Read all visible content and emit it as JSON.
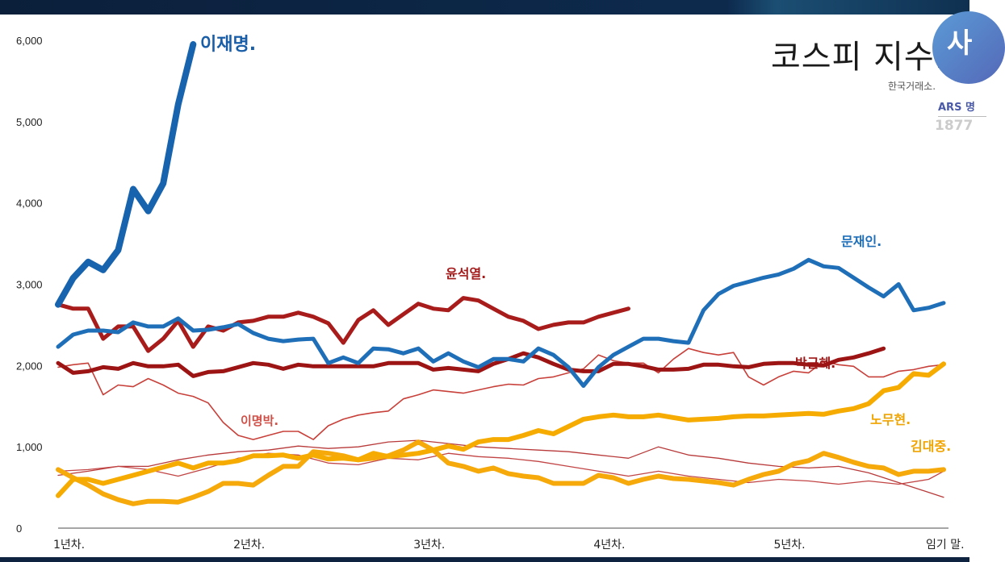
{
  "header": {
    "title": "코스피 지수.",
    "source": "한국거래소."
  },
  "overlay": {
    "logo_text": "사",
    "ars_label": "ARS 명",
    "phone": "1877"
  },
  "chart_data": {
    "type": "line",
    "title": "코스피 지수.",
    "xlabel": "",
    "ylabel": "",
    "ylim": [
      0,
      6000
    ],
    "yticks": [
      0,
      1000,
      2000,
      3000,
      4000,
      5000,
      6000
    ],
    "ytick_labels": [
      "0",
      "1,000",
      "2,000",
      "3,000",
      "4,000",
      "5,000",
      "6,000"
    ],
    "x_unit": "months into term",
    "xlim": [
      0,
      59
    ],
    "xticks": [
      0,
      12,
      24,
      36,
      48,
      59
    ],
    "xtick_labels": [
      "1년차.",
      "2년차.",
      "3년차.",
      "4년차.",
      "5년차.",
      "임기 말."
    ],
    "grid": false,
    "legend": "inline labels",
    "series": [
      {
        "name": "",
        "color": "#b83a3a",
        "width": 1.3,
        "x": [
          0,
          2,
          4,
          6,
          8,
          10,
          12,
          14,
          16,
          18,
          20,
          22,
          24,
          26,
          28,
          30,
          32,
          34,
          36,
          38,
          40,
          42,
          44,
          46,
          48,
          50,
          52,
          54,
          56,
          58,
          59
        ],
        "values": [
          650,
          700,
          760,
          760,
          840,
          900,
          940,
          960,
          1010,
          980,
          1000,
          1060,
          1080,
          1040,
          1000,
          980,
          960,
          940,
          900,
          860,
          1000,
          900,
          860,
          800,
          760,
          740,
          760,
          680,
          560,
          440,
          380
        ]
      },
      {
        "name": "",
        "color": "#c24545",
        "width": 1.3,
        "x": [
          0,
          2,
          4,
          6,
          8,
          10,
          12,
          14,
          16,
          18,
          20,
          22,
          24,
          26,
          28,
          30,
          32,
          34,
          36,
          38,
          40,
          42,
          44,
          46,
          48,
          50,
          52,
          54,
          56,
          58,
          59
        ],
        "values": [
          700,
          720,
          760,
          720,
          640,
          740,
          860,
          920,
          900,
          800,
          780,
          860,
          840,
          920,
          880,
          860,
          820,
          760,
          700,
          640,
          700,
          640,
          600,
          560,
          600,
          580,
          540,
          580,
          540,
          600,
          700
        ]
      },
      {
        "name": "이명박.",
        "color": "#c8403a",
        "width": 1.6,
        "values": [
          1980,
          2010,
          2030,
          1640,
          1760,
          1740,
          1840,
          1760,
          1660,
          1620,
          1540,
          1300,
          1140,
          1090,
          1140,
          1190,
          1190,
          1090,
          1260,
          1340,
          1390,
          1420,
          1440,
          1590,
          1640,
          1700,
          1680,
          1660,
          1700,
          1740,
          1770,
          1760,
          1840,
          1860,
          1910,
          1960,
          2130,
          2060,
          2030,
          2030,
          1910,
          2080,
          2210,
          2160,
          2130,
          2160,
          1860,
          1760,
          1860,
          1930,
          1910,
          2050,
          2010,
          1990,
          1860,
          1860,
          1930,
          1950,
          1990,
          2010
        ]
      },
      {
        "name": "김대중.",
        "color": "#f5a90a",
        "width": 6,
        "values": [
          720,
          620,
          530,
          420,
          350,
          300,
          330,
          330,
          320,
          380,
          450,
          550,
          550,
          530,
          650,
          760,
          760,
          940,
          920,
          890,
          840,
          860,
          890,
          960,
          1060,
          960,
          800,
          760,
          700,
          740,
          670,
          640,
          620,
          550,
          550,
          550,
          650,
          620,
          550,
          600,
          640,
          610,
          600,
          580,
          560,
          530,
          600,
          660,
          700,
          790,
          830,
          920,
          870,
          810,
          760,
          740,
          660,
          700,
          700,
          720
        ]
      },
      {
        "name": "노무현.",
        "color": "#f5ab00",
        "width": 6,
        "values": [
          400,
          600,
          600,
          550,
          600,
          650,
          700,
          750,
          800,
          740,
          800,
          800,
          830,
          890,
          890,
          900,
          860,
          900,
          850,
          860,
          840,
          920,
          880,
          900,
          920,
          960,
          1010,
          970,
          1060,
          1090,
          1090,
          1140,
          1200,
          1160,
          1250,
          1340,
          1370,
          1390,
          1370,
          1370,
          1390,
          1360,
          1330,
          1340,
          1350,
          1370,
          1380,
          1380,
          1390,
          1400,
          1410,
          1400,
          1440,
          1470,
          1530,
          1690,
          1730,
          1900,
          1880,
          2020
        ]
      },
      {
        "name": "박근혜.",
        "color": "#9c1414",
        "width": 5,
        "values": [
          2030,
          1910,
          1930,
          1980,
          1960,
          2030,
          1990,
          1990,
          2010,
          1870,
          1920,
          1930,
          1980,
          2030,
          2010,
          1960,
          2010,
          1990,
          1990,
          1990,
          1990,
          1990,
          2030,
          2030,
          2030,
          1950,
          1970,
          1950,
          1930,
          2020,
          2080,
          2150,
          2100,
          2020,
          1950,
          1930,
          1930,
          2020,
          2020,
          1990,
          1950,
          1950,
          1960,
          2010,
          2010,
          1990,
          1980,
          2020,
          2030,
          2030,
          2010,
          2000,
          2070,
          2100,
          2150,
          2210
        ]
      },
      {
        "name": "윤석열.",
        "color": "#a81c1c",
        "width": 5,
        "values": [
          2750,
          2700,
          2700,
          2330,
          2480,
          2480,
          2180,
          2330,
          2550,
          2230,
          2480,
          2430,
          2530,
          2550,
          2600,
          2600,
          2650,
          2600,
          2520,
          2280,
          2560,
          2680,
          2500,
          2630,
          2760,
          2700,
          2680,
          2830,
          2800,
          2700,
          2600,
          2550,
          2450,
          2500,
          2530,
          2530,
          2600,
          2650,
          2700
        ]
      },
      {
        "name": "문재인.",
        "color": "#1f6fb8",
        "width": 5,
        "values": [
          2230,
          2380,
          2430,
          2430,
          2410,
          2530,
          2480,
          2480,
          2580,
          2430,
          2440,
          2470,
          2510,
          2400,
          2330,
          2300,
          2320,
          2330,
          2030,
          2100,
          2030,
          2210,
          2200,
          2150,
          2210,
          2050,
          2150,
          2050,
          1980,
          2080,
          2080,
          2050,
          2210,
          2130,
          1980,
          1750,
          1980,
          2130,
          2230,
          2330,
          2330,
          2300,
          2280,
          2680,
          2880,
          2980,
          3030,
          3080,
          3120,
          3190,
          3300,
          3220,
          3200,
          3080,
          2960,
          2850,
          3000,
          2680,
          2710,
          2770
        ]
      },
      {
        "name": "이재명.",
        "color": "#1763ad",
        "width": 8,
        "values": [
          2750,
          3075,
          3275,
          3175,
          3420,
          4170,
          3900,
          4240,
          5210,
          5950
        ]
      }
    ]
  }
}
